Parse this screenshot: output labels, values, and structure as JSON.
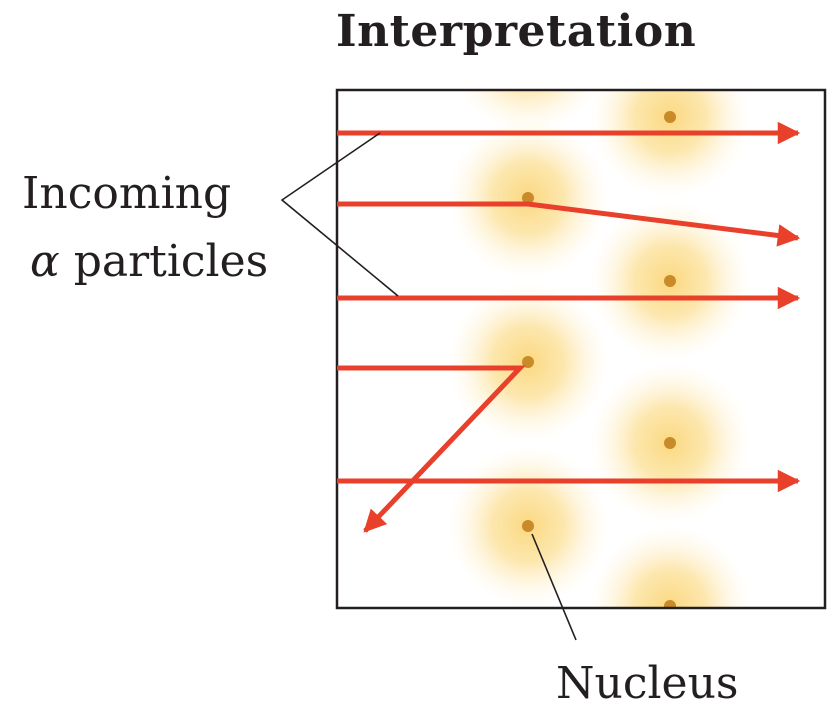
{
  "title": "Interpretation",
  "labels": {
    "incoming_line1": "Incoming",
    "incoming_line2_symbol": "α",
    "incoming_line2_text": " particles",
    "nucleus": "Nucleus"
  },
  "colors": {
    "alpha_path": "#e8402a",
    "nucleus_dot": "#c98a2a",
    "electron_cloud": "#fbd679",
    "frame": "#231f20",
    "leader_line": "#231f20"
  }
}
